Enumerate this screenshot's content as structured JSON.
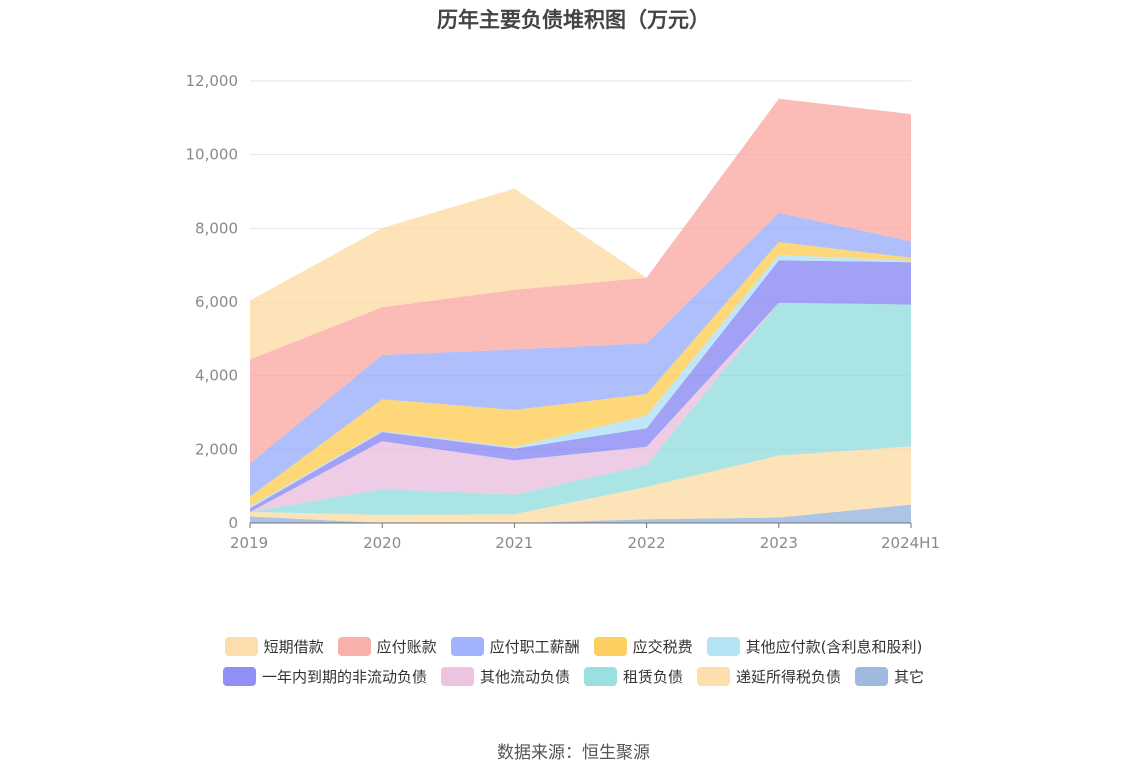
{
  "chart_data": {
    "type": "area",
    "stacked": true,
    "title": "历年主要负债堆积图（万元）",
    "categories": [
      "2019",
      "2020",
      "2021",
      "2022",
      "2023",
      "2024H1"
    ],
    "ylim": [
      0,
      12000
    ],
    "yticks": [
      0,
      2000,
      4000,
      6000,
      8000,
      10000,
      12000
    ],
    "ytick_labels": [
      "0",
      "2,000",
      "4,000",
      "6,000",
      "8,000",
      "10,000",
      "12,000"
    ],
    "grid": true,
    "legend_position": "bottom",
    "series": [
      {
        "name": "其它",
        "color": "#8fadd9",
        "values": [
          180,
          0,
          0,
          100,
          150,
          500
        ]
      },
      {
        "name": "递延所得税负债",
        "color": "#fcd99d",
        "values": [
          120,
          220,
          240,
          880,
          1680,
          1580
        ]
      },
      {
        "name": "租赁负债",
        "color": "#8ad9d9",
        "values": [
          0,
          700,
          530,
          600,
          4150,
          3850
        ]
      },
      {
        "name": "其他流动负债",
        "color": "#e9b8dc",
        "values": [
          0,
          1300,
          930,
          490,
          0,
          0
        ]
      },
      {
        "name": "一年内到期的非流动负债",
        "color": "#7d7df2",
        "values": [
          100,
          250,
          320,
          500,
          1150,
          1150
        ]
      },
      {
        "name": "其他应付款(含利息和股利)",
        "color": "#a8def5",
        "values": [
          50,
          30,
          40,
          350,
          150,
          40
        ]
      },
      {
        "name": "应交税费",
        "color": "#fdc744",
        "values": [
          270,
          860,
          1010,
          580,
          350,
          80
        ]
      },
      {
        "name": "应付职工薪酬",
        "color": "#8fa6fb",
        "values": [
          900,
          1200,
          1640,
          1380,
          790,
          450
        ]
      },
      {
        "name": "应付账款",
        "color": "#f9a29b",
        "values": [
          2820,
          1300,
          1620,
          1780,
          3100,
          3450
        ]
      },
      {
        "name": "短期借款",
        "color": "#fdd79c",
        "values": [
          1600,
          2150,
          2750,
          0,
          0,
          0
        ]
      }
    ],
    "legend_rows": [
      [
        "短期借款",
        "应付账款",
        "应付职工薪酬",
        "应交税费",
        "其他应付款(含利息和股利)"
      ],
      [
        "一年内到期的非流动负债",
        "其他流动负债",
        "租赁负债",
        "递延所得税负债",
        "其它"
      ]
    ]
  },
  "source": "数据来源：恒生聚源"
}
